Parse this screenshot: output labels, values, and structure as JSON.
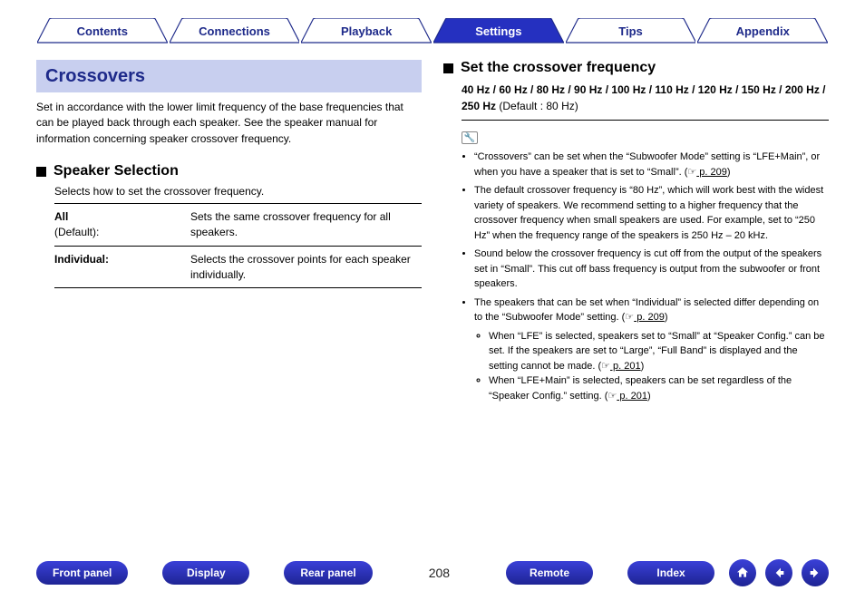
{
  "colors": {
    "brand": "#1e2a8a",
    "tab_fill": "#ffffff",
    "tab_active_fill": "#2530c0",
    "banner_bg": "#c8cfef"
  },
  "tabs": [
    {
      "label": "Contents",
      "active": false
    },
    {
      "label": "Connections",
      "active": false
    },
    {
      "label": "Playback",
      "active": false
    },
    {
      "label": "Settings",
      "active": true
    },
    {
      "label": "Tips",
      "active": false
    },
    {
      "label": "Appendix",
      "active": false
    }
  ],
  "left": {
    "banner": "Crossovers",
    "intro": "Set in accordance with the lower limit frequency of the base frequencies that can be played back through each speaker. See the speaker manual for information concerning speaker crossover frequency.",
    "section_title": "Speaker Selection",
    "section_sub": "Selects how to set the crossover frequency.",
    "options": [
      {
        "key": "All",
        "def": "(Default):",
        "desc": "Sets the same crossover frequency for all speakers."
      },
      {
        "key": "Individual:",
        "def": "",
        "desc": "Selects the crossover points for each speaker individually."
      }
    ]
  },
  "right": {
    "section_title": "Set the crossover frequency",
    "freq_values": "40 Hz / 60 Hz / 80 Hz / 90 Hz / 100 Hz / 110 Hz / 120 Hz / 150 Hz / 200 Hz / 250 Hz",
    "freq_default": " (Default : 80 Hz)",
    "notes": [
      {
        "text_a": "“Crossovers” can be set when the “Subwoofer Mode” setting is “LFE+Main”, or when you have a speaker that is set to “Small”.  (☞",
        "ref": " p. 209",
        "text_b": ")"
      },
      {
        "text_a": "The default crossover frequency is “80 Hz”, which will work best with the widest variety of speakers. We recommend setting to a higher frequency that the crossover frequency when small speakers are used. For example, set to “250 Hz” when the frequency range of the speakers is 250 Hz – 20 kHz.",
        "ref": "",
        "text_b": ""
      },
      {
        "text_a": "Sound below the crossover frequency is cut off from the output of the speakers set in “Small”. This cut off bass frequency is output from the subwoofer or front speakers.",
        "ref": "",
        "text_b": ""
      },
      {
        "text_a": "The speakers that can be set when “Individual” is selected differ depending on to the “Subwoofer Mode” setting.  (☞",
        "ref": " p. 209",
        "text_b": ")",
        "sub": [
          {
            "text_a": "When “LFE” is selected, speakers set to “Small” at “Speaker Config.” can be set. If the speakers are set to “Large”, “Full Band” is displayed and the setting cannot be made.  (☞",
            "ref": " p. 201",
            "text_b": ")"
          },
          {
            "text_a": "When “LFE+Main” is selected, speakers can be set regardless of the “Speaker Config.” setting.  (☞",
            "ref": " p. 201",
            "text_b": ")"
          }
        ]
      }
    ]
  },
  "footer": {
    "buttons": [
      "Front panel",
      "Display",
      "Rear panel"
    ],
    "page": "208",
    "buttons2": [
      "Remote",
      "Index"
    ]
  }
}
